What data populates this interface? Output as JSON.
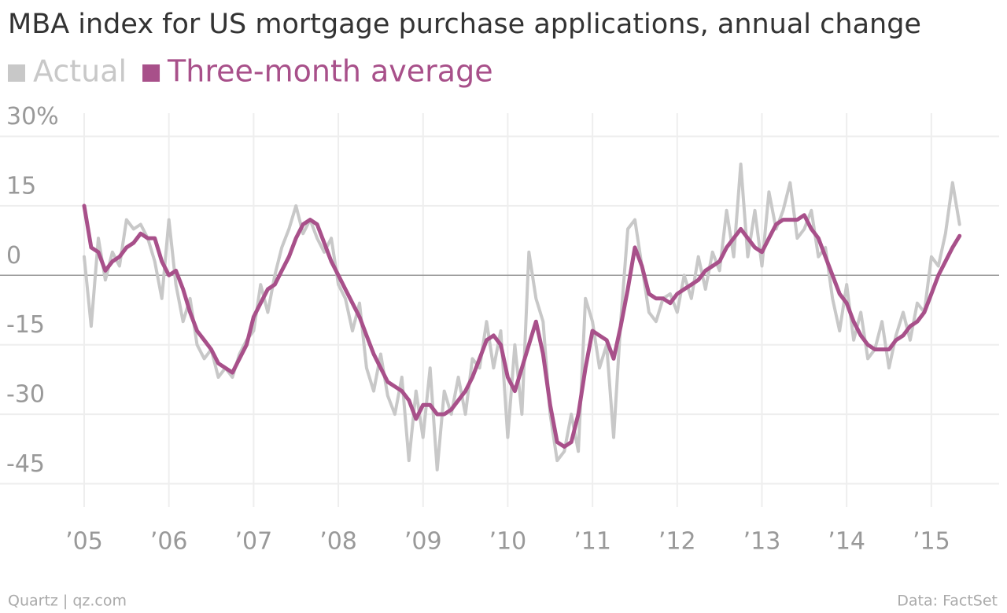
{
  "chart_data": {
    "type": "line",
    "title": "MBA index for US mortgage purchase applications, annual change",
    "credit": "Quartz | qz.com",
    "source": "Data: FactSet",
    "x": [
      2005,
      2005.083,
      2005.167,
      2005.25,
      2005.333,
      2005.417,
      2005.5,
      2005.583,
      2005.667,
      2005.75,
      2005.833,
      2005.917,
      2006,
      2006.083,
      2006.167,
      2006.25,
      2006.333,
      2006.417,
      2006.5,
      2006.583,
      2006.667,
      2006.75,
      2006.833,
      2006.917,
      2007,
      2007.083,
      2007.167,
      2007.25,
      2007.333,
      2007.417,
      2007.5,
      2007.583,
      2007.667,
      2007.75,
      2007.833,
      2007.917,
      2008,
      2008.083,
      2008.167,
      2008.25,
      2008.333,
      2008.417,
      2008.5,
      2008.583,
      2008.667,
      2008.75,
      2008.833,
      2008.917,
      2009,
      2009.083,
      2009.167,
      2009.25,
      2009.333,
      2009.417,
      2009.5,
      2009.583,
      2009.667,
      2009.75,
      2009.833,
      2009.917,
      2010,
      2010.083,
      2010.167,
      2010.25,
      2010.333,
      2010.417,
      2010.5,
      2010.583,
      2010.667,
      2010.75,
      2010.833,
      2010.917,
      2011,
      2011.083,
      2011.167,
      2011.25,
      2011.333,
      2011.417,
      2011.5,
      2011.583,
      2011.667,
      2011.75,
      2011.833,
      2011.917,
      2012,
      2012.083,
      2012.167,
      2012.25,
      2012.333,
      2012.417,
      2012.5,
      2012.583,
      2012.667,
      2012.75,
      2012.833,
      2012.917,
      2013,
      2013.083,
      2013.167,
      2013.25,
      2013.333,
      2013.417,
      2013.5,
      2013.583,
      2013.667,
      2013.75,
      2013.833,
      2013.917,
      2014,
      2014.083,
      2014.167,
      2014.25,
      2014.333,
      2014.417,
      2014.5,
      2014.583,
      2014.667,
      2014.75,
      2014.833,
      2014.917,
      2015,
      2015.083,
      2015.167,
      2015.25,
      2015.333
    ],
    "series": [
      {
        "name": "Actual",
        "color": "#c8c8c8",
        "values": [
          4,
          -11,
          8,
          -1,
          5,
          2,
          12,
          10,
          11,
          8,
          3,
          -5,
          12,
          -2,
          -10,
          -5,
          -15,
          -18,
          -16,
          -22,
          -20,
          -22,
          -17,
          -14,
          -12,
          -2,
          -8,
          0,
          6,
          10,
          15,
          9,
          12,
          8,
          5,
          8,
          -2,
          -5,
          -12,
          -6,
          -20,
          -25,
          -17,
          -26,
          -30,
          -22,
          -40,
          -25,
          -35,
          -20,
          -42,
          -25,
          -30,
          -22,
          -30,
          -18,
          -20,
          -10,
          -20,
          -12,
          -35,
          -15,
          -30,
          5,
          -5,
          -10,
          -30,
          -40,
          -38,
          -30,
          -38,
          -5,
          -10,
          -20,
          -15,
          -35,
          -10,
          10,
          12,
          2,
          -8,
          -10,
          -5,
          -4,
          -8,
          0,
          -5,
          4,
          -3,
          5,
          1,
          14,
          4,
          24,
          4,
          14,
          2,
          18,
          10,
          14,
          20,
          8,
          10,
          14,
          4,
          6,
          -5,
          -12,
          -2,
          -14,
          -8,
          -18,
          -16,
          -10,
          -20,
          -13,
          -8,
          -14,
          -6,
          -8,
          4,
          2,
          9,
          20,
          11
        ]
      },
      {
        "name": "Three-month average",
        "color": "#a8508a",
        "values": [
          15,
          6,
          5,
          1,
          3,
          4,
          6,
          7,
          9,
          8,
          8,
          3,
          0,
          1,
          -3,
          -8,
          -12,
          -14,
          -16,
          -19,
          -20,
          -21,
          -18,
          -15,
          -9,
          -6,
          -3,
          -2,
          1,
          4,
          8,
          11,
          12,
          11,
          7,
          3,
          0,
          -3,
          -6,
          -9,
          -13,
          -17,
          -20,
          -23,
          -24,
          -25,
          -27,
          -31,
          -28,
          -28,
          -30,
          -30,
          -29,
          -27,
          -25,
          -22,
          -18,
          -14,
          -13,
          -15,
          -22,
          -25,
          -20,
          -15,
          -10,
          -17,
          -28,
          -36,
          -37,
          -36,
          -30,
          -20,
          -12,
          -13,
          -14,
          -18,
          -11,
          -3,
          6,
          2,
          -4,
          -5,
          -5,
          -6,
          -4,
          -3,
          -2,
          -1,
          1,
          2,
          3,
          6,
          8,
          10,
          8,
          6,
          5,
          8,
          11,
          12,
          12,
          12,
          13,
          10,
          8,
          4,
          0,
          -4,
          -6,
          -10,
          -13,
          -15,
          -16,
          -16,
          -16,
          -14,
          -13,
          -11,
          -10,
          -8,
          -4,
          0,
          3,
          6,
          8.5
        ]
      }
    ],
    "xlim": [
      2005,
      2015.8
    ],
    "xticks": [
      {
        "value": 2005,
        "label": "’05"
      },
      {
        "value": 2006,
        "label": "’06"
      },
      {
        "value": 2007,
        "label": "’07"
      },
      {
        "value": 2008,
        "label": "’08"
      },
      {
        "value": 2009,
        "label": "’09"
      },
      {
        "value": 2010,
        "label": "’10"
      },
      {
        "value": 2011,
        "label": "’11"
      },
      {
        "value": 2012,
        "label": "’12"
      },
      {
        "value": 2013,
        "label": "’13"
      },
      {
        "value": 2014,
        "label": "’14"
      },
      {
        "value": 2015,
        "label": "’15"
      }
    ],
    "ylim": [
      -50,
      35
    ],
    "yticks": [
      {
        "value": 30,
        "label": "30%"
      },
      15,
      0,
      -15,
      -30,
      -45
    ],
    "grid": true
  }
}
